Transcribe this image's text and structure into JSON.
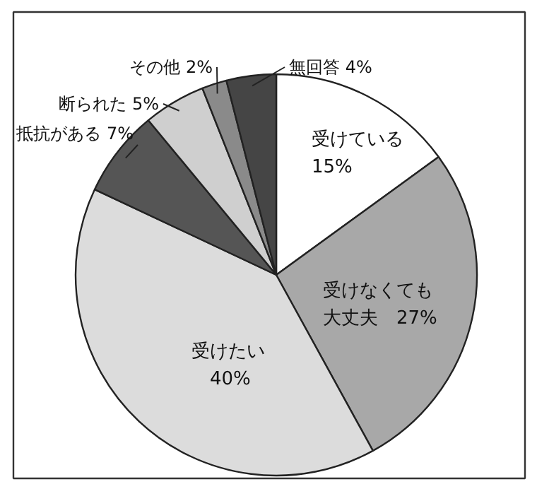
{
  "chart_data": {
    "type": "pie",
    "categories": [
      "受けている",
      "受けなくても大丈夫",
      "受けたい",
      "抵抗がある",
      "断られた",
      "その他",
      "無回答"
    ],
    "values": [
      15,
      27,
      40,
      7,
      5,
      2,
      4
    ],
    "value_labels": [
      "15%",
      "27%",
      "40%",
      "7%",
      "5%",
      "2%",
      "4%"
    ],
    "colors": [
      "#ffffff",
      "#a8a8a8",
      "#dcdcdc",
      "#555555",
      "#cfcfcf",
      "#8a8a8a",
      "#454545"
    ]
  }
}
